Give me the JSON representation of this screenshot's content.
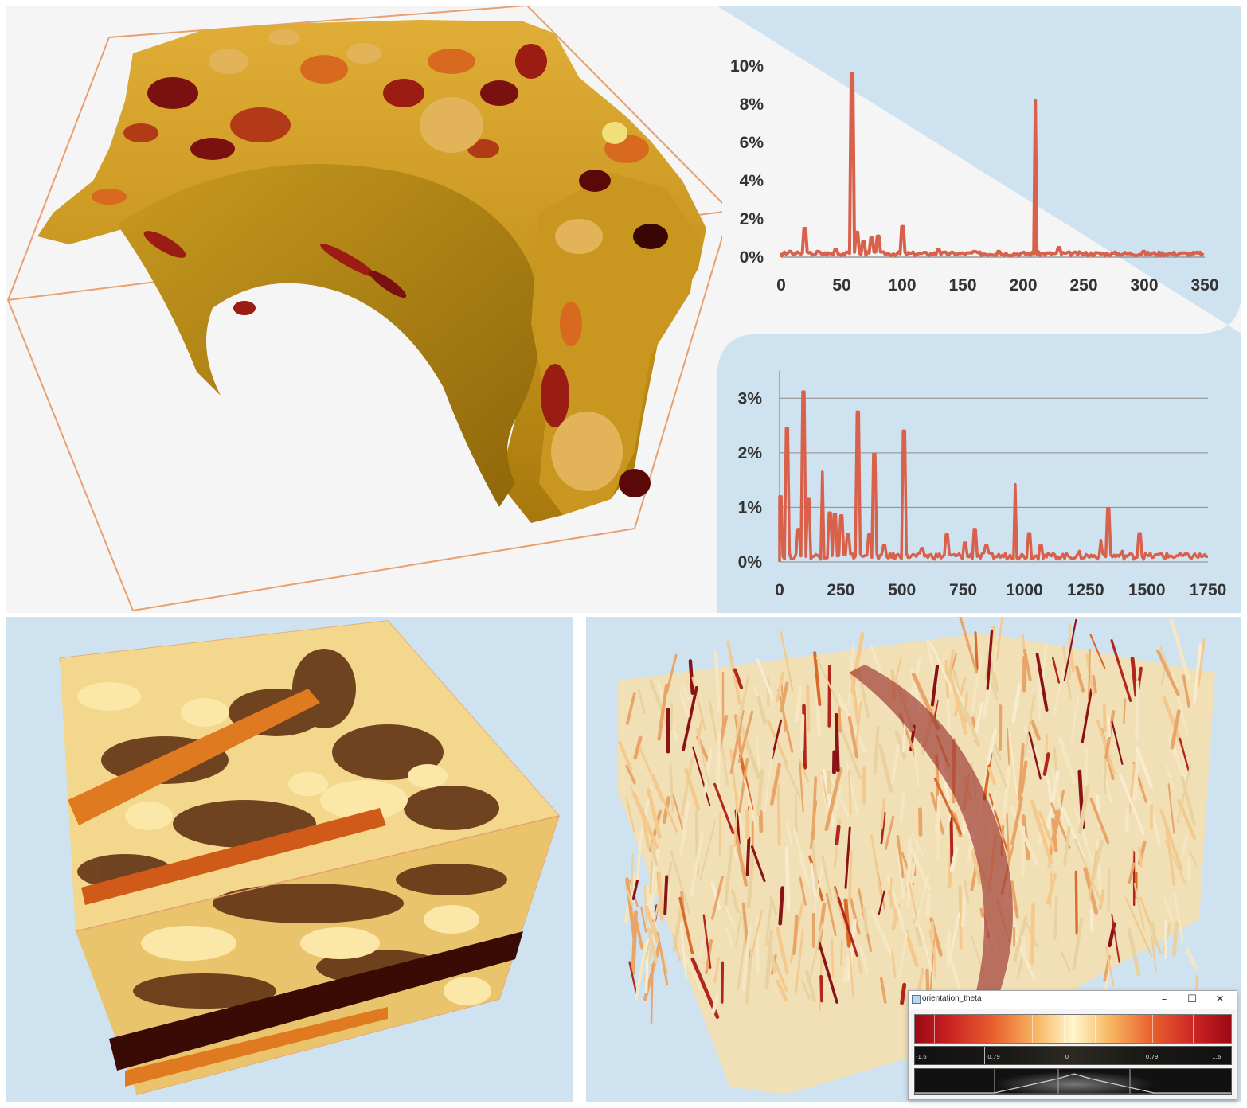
{
  "chart_data": [
    {
      "type": "line",
      "xlim": [
        0,
        350
      ],
      "ylim": [
        0,
        10
      ],
      "x_ticks": [
        "0",
        "50",
        "100",
        "150",
        "200",
        "250",
        "300",
        "350"
      ],
      "y_ticks": [
        "0%",
        "2%",
        "4%",
        "6%",
        "8%",
        "10%"
      ],
      "grid": false,
      "color": "#d9604a",
      "peaks": [
        [
          7,
          0.3
        ],
        [
          19,
          1.5
        ],
        [
          30,
          0.3
        ],
        [
          45,
          0.4
        ],
        [
          59,
          9.6
        ],
        [
          63,
          1.3
        ],
        [
          68,
          0.8
        ],
        [
          75,
          1.0
        ],
        [
          80,
          1.1
        ],
        [
          100,
          1.6
        ],
        [
          130,
          0.4
        ],
        [
          160,
          0.3
        ],
        [
          180,
          0.3
        ],
        [
          210,
          8.2
        ],
        [
          230,
          0.5
        ],
        [
          300,
          0.3
        ],
        [
          330,
          0.2
        ]
      ],
      "baseline": 0.2
    },
    {
      "type": "line",
      "xlim": [
        0,
        1800
      ],
      "ylim": [
        0,
        3.5
      ],
      "x_ticks": [
        "0",
        "250",
        "500",
        "750",
        "1000",
        "1250",
        "1500",
        "1750"
      ],
      "y_ticks": [
        "0%",
        "1%",
        "2%",
        "3%"
      ],
      "grid": true,
      "color": "#d9604a",
      "peaks": [
        [
          5,
          1.2
        ],
        [
          30,
          2.45
        ],
        [
          80,
          0.6
        ],
        [
          100,
          3.12
        ],
        [
          120,
          1.15
        ],
        [
          180,
          1.65
        ],
        [
          210,
          0.9
        ],
        [
          230,
          0.88
        ],
        [
          260,
          0.85
        ],
        [
          290,
          0.5
        ],
        [
          330,
          2.75
        ],
        [
          380,
          0.5
        ],
        [
          400,
          1.98
        ],
        [
          440,
          0.3
        ],
        [
          520,
          2.4
        ],
        [
          600,
          0.25
        ],
        [
          700,
          0.5
        ],
        [
          780,
          0.35
        ],
        [
          820,
          0.6
        ],
        [
          870,
          0.3
        ],
        [
          990,
          1.42
        ],
        [
          1050,
          0.52
        ],
        [
          1100,
          0.3
        ],
        [
          1260,
          0.2
        ],
        [
          1350,
          0.4
        ],
        [
          1380,
          0.98
        ],
        [
          1440,
          0.2
        ],
        [
          1510,
          0.52
        ],
        [
          1600,
          0.15
        ],
        [
          1700,
          0.1
        ]
      ],
      "baseline": 0.12
    }
  ],
  "colormap_window": {
    "title": "orientation_theta",
    "minimize_glyph": "–",
    "maximize_glyph": "☐",
    "close_glyph": "✕",
    "tick_labels": [
      "-1.6",
      "0.79",
      "0",
      "0.79",
      "1.6"
    ],
    "gradient_colors": [
      "#9b0a14",
      "#c61f22",
      "#e9602f",
      "#f7b560",
      "#fff6cd"
    ]
  },
  "colors": {
    "bone_gold": "#d9a227",
    "bone_dark": "#b07f10",
    "grain_dark": "#7a1010",
    "grain_orange": "#d86a1f",
    "fiber_cream": "#f1dfb6",
    "fiber_red": "#8a1316",
    "bbox_orange": "#e8a070",
    "panel_blue": "#cfe2ef"
  },
  "icons": [
    "window-app-icon",
    "minimize-icon",
    "maximize-icon",
    "close-icon"
  ]
}
